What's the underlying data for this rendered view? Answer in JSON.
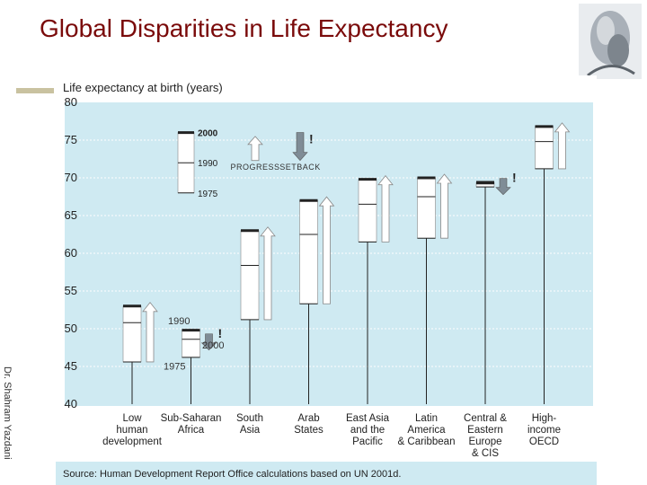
{
  "slide": {
    "title": "Global Disparities in Life Expectancy",
    "side_credit": "Dr. Shahram Yazdani"
  },
  "colors": {
    "title": "#7a0a0a",
    "plot_bg": "#cfeaf2",
    "box_fill": "#ffffff",
    "progress_arrow": "#ffffff",
    "setback_arrow": "#7f8c96",
    "line": "#222222"
  },
  "chart_data": {
    "type": "range-bar",
    "title": "Life expectancy at birth (years)",
    "source": "Source: Human Development Report Office calculations based on UN 2001d.",
    "ylim": [
      40,
      80
    ],
    "yticks": [
      40,
      45,
      50,
      55,
      60,
      65,
      70,
      75,
      80
    ],
    "grid": true,
    "categories": [
      "Low human development",
      "Sub-Saharan Africa",
      "South Asia",
      "Arab States",
      "East Asia and the Pacific",
      "Latin America & Caribbean",
      "Central & Eastern Europe & CIS",
      "High-income OECD"
    ],
    "category_label_lines": [
      [
        "Low",
        "human",
        "development"
      ],
      [
        "Sub-Saharan",
        "Africa"
      ],
      [
        "South",
        "Asia"
      ],
      [
        "Arab",
        "States"
      ],
      [
        "East Asia",
        "and the",
        "Pacific"
      ],
      [
        "Latin",
        "America",
        "& Caribbean"
      ],
      [
        "Central &",
        "Eastern",
        "Europe",
        "& CIS"
      ],
      [
        "High-",
        "income",
        "OECD"
      ]
    ],
    "series": [
      {
        "name": "1975",
        "values": [
          45.6,
          46.2,
          51.2,
          53.3,
          61.5,
          62.0,
          68.8,
          71.2
        ]
      },
      {
        "name": "1990",
        "values": [
          50.8,
          48.6,
          58.4,
          62.5,
          66.5,
          67.5,
          69.2,
          74.8
        ]
      },
      {
        "name": "2000",
        "values": [
          53.0,
          49.8,
          63.0,
          67.0,
          69.8,
          70.0,
          69.4,
          76.8
        ]
      }
    ],
    "trend": [
      "progress",
      "setback",
      "progress",
      "progress",
      "progress",
      "progress",
      "setback",
      "progress"
    ],
    "legend": {
      "years": [
        "2000",
        "1990",
        "1975"
      ],
      "progress_label": "PROGRESS",
      "setback_label": "SETBACK",
      "callout_1990": "1990",
      "callout_2000": "2000",
      "callout_1975": "1975",
      "exclamation": "!"
    }
  }
}
